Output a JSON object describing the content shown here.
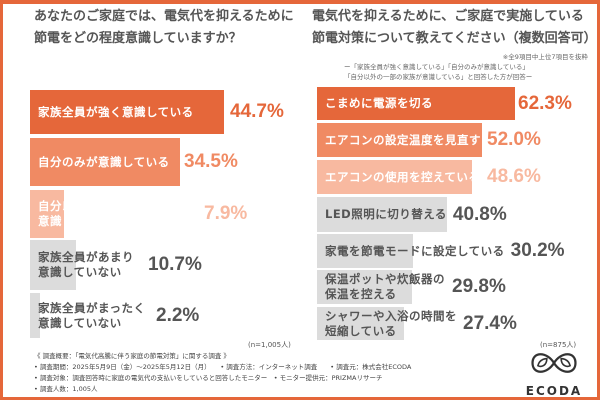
{
  "colors": {
    "accent": "#e5673a",
    "mid": "#f08a63",
    "light": "#f8b9a0",
    "grey": "#dcdcdc",
    "greyText": "#555555"
  },
  "chart_data": [
    {
      "type": "bar",
      "orientation": "horizontal",
      "title": "あなたのご家庭では、電気代を抑えるために節電をどの程度意識していますか？",
      "unit": "%",
      "sample": "(n=1,005人)",
      "categories": [
        "家族全員が強く意識している",
        "自分のみが意識している",
        "自分以外の一部の家族が意識している",
        "家族全員があまり意識していない",
        "家族全員がまったく意識していない"
      ],
      "values": [
        44.7,
        34.5,
        7.9,
        10.7,
        2.2
      ],
      "labels": [
        "44.7%",
        "34.5%",
        "7.9%",
        "10.7%",
        "2.2%"
      ]
    },
    {
      "type": "bar",
      "orientation": "horizontal",
      "title": "電気代を抑えるために、ご家庭で実施している節電対策について教えてください（複数回答可）",
      "note": "※全9項目中上位7項目を抜粋",
      "subnote1": "ー「家族全員が強く意識している」「自分のみが意識している」",
      "subnote2": "「自分以外の一部の家族が意識している」と回答した方が回答ー",
      "unit": "%",
      "sample": "(n=875人)",
      "categories": [
        "こまめに電源を切る",
        "エアコンの設定温度を見直す",
        "エアコンの使用を控えている",
        "LED照明に切り替える",
        "家電を節電モードに設定している",
        "保温ポットや炊飯器の保温を控える",
        "シャワーや入浴の時間を短縮している"
      ],
      "values": [
        62.3,
        52.0,
        48.6,
        40.8,
        30.2,
        29.8,
        27.4
      ],
      "labels": [
        "62.3%",
        "52.0%",
        "48.6%",
        "40.8%",
        "30.2%",
        "29.8%",
        "27.4%"
      ]
    }
  ],
  "footer": {
    "lines": [
      "《 調査概要：「電気代高騰に伴う家庭の節電対策」に関する調査 》",
      "• 調査期間：2025年5月9日（金）〜2025年5月12日（月）　　• 調査方法：インターネット調査　　• 調査元：株式会社ECODA",
      "• 調査対象：調査回答時に家庭の電気代の支払いをしていると回答したモニター　• モニター提供元：PRIZMAリサーチ",
      "• 調査人数：1,005人"
    ]
  },
  "logo": {
    "text": "ECODA"
  }
}
